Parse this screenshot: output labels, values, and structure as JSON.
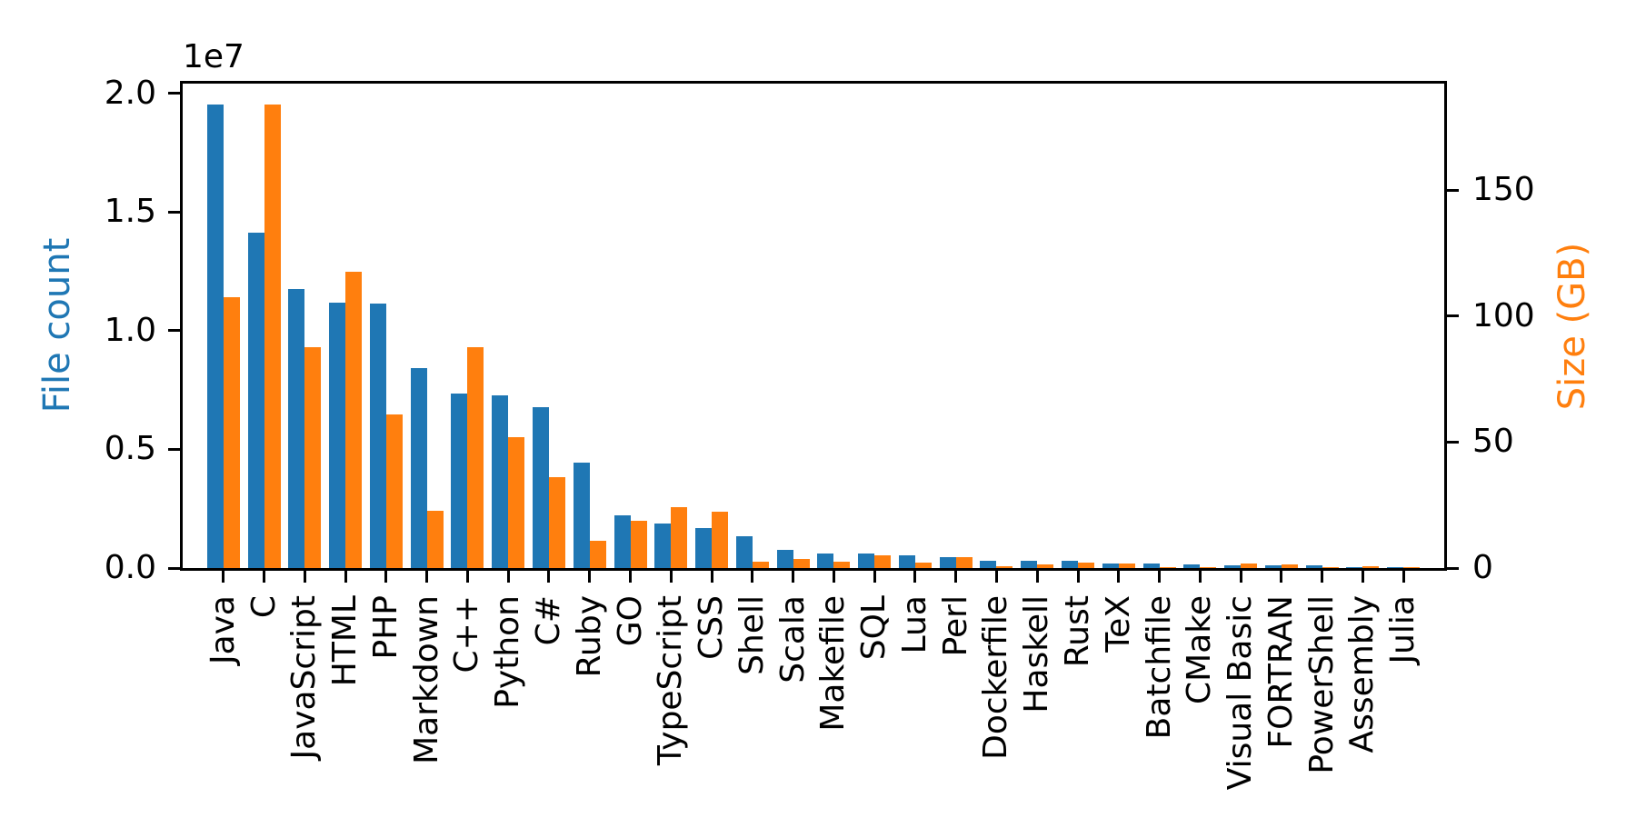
{
  "chart_data": {
    "type": "bar",
    "title": "",
    "dual_axis": true,
    "grid": false,
    "legend": "none",
    "categories": [
      "Java",
      "C",
      "JavaScript",
      "HTML",
      "PHP",
      "Markdown",
      "C++",
      "Python",
      "C#",
      "Ruby",
      "GO",
      "TypeScript",
      "CSS",
      "Shell",
      "Scala",
      "Makefile",
      "SQL",
      "Lua",
      "Perl",
      "Dockerfile",
      "Haskell",
      "Rust",
      "TeX",
      "Batchfile",
      "CMake",
      "Visual Basic",
      "FORTRAN",
      "PowerShell",
      "Assembly",
      "Julia"
    ],
    "series": [
      {
        "name": "File count",
        "axis": "left",
        "color": "#1f77b4",
        "values": [
          19550000,
          14130000,
          11770000,
          11170000,
          11140000,
          8410000,
          7340000,
          7270000,
          6770000,
          4450000,
          2230000,
          1880000,
          1670000,
          1340000,
          760000,
          610000,
          600000,
          540000,
          460000,
          320000,
          295000,
          320000,
          210000,
          200000,
          140000,
          130000,
          100000,
          120000,
          50000,
          35000
        ]
      },
      {
        "name": "Size (GB)",
        "axis": "right",
        "color": "#ff7f0e",
        "values": [
          107.5,
          183.9,
          87.5,
          117.8,
          61.0,
          22.6,
          87.7,
          51.8,
          36.0,
          11.0,
          18.7,
          24.0,
          22.3,
          2.6,
          3.5,
          2.7,
          5.1,
          2.3,
          4.3,
          0.7,
          1.6,
          2.1,
          1.9,
          0.4,
          0.35,
          1.8,
          1.6,
          0.4,
          0.6,
          0.2
        ]
      }
    ],
    "left_axis": {
      "label": "File count",
      "color": "#1f77b4",
      "offset_text": "1e7",
      "tick_labels": [
        "0.0",
        "0.5",
        "1.0",
        "1.5",
        "2.0"
      ],
      "tick_values": [
        0,
        5000000,
        10000000,
        15000000,
        20000000
      ],
      "range": [
        0,
        20420000
      ]
    },
    "right_axis": {
      "label": "Size (GB)",
      "color": "#ff7f0e",
      "tick_labels": [
        "0",
        "50",
        "100",
        "150"
      ],
      "tick_values": [
        0,
        50,
        100,
        150
      ],
      "range": [
        0,
        192.3
      ]
    },
    "x_axis": {
      "tick_label_rotation": 90
    }
  }
}
